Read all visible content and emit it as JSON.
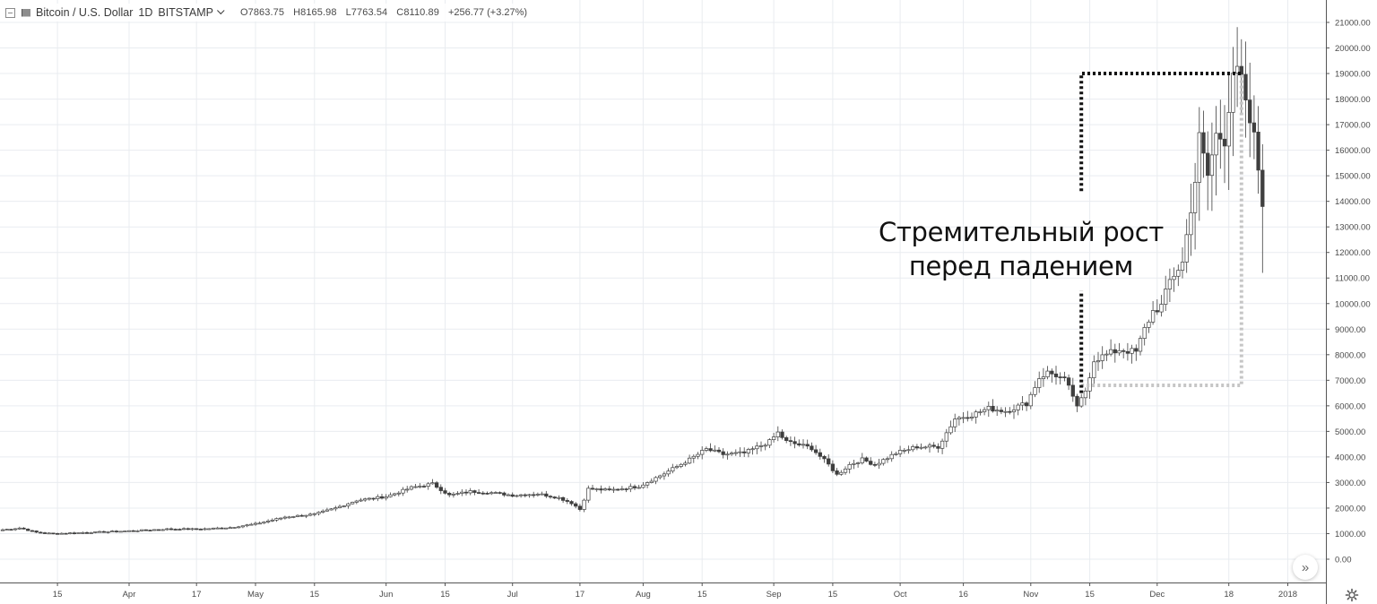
{
  "header": {
    "symbol": "Bitcoin / U.S. Dollar",
    "interval": "1D",
    "exchange": "BITSTAMP",
    "open": "O7863.75",
    "high": "H8165.98",
    "low": "L7763.54",
    "close": "C8110.89",
    "change": "+256.77 (+3.27%)"
  },
  "annotation": {
    "line1": "Стремительный рост",
    "line2": "перед падением"
  },
  "colors": {
    "candle_up": "#ffffff",
    "candle_down": "#3f3f3f",
    "candle_border": "#3f3f3f",
    "grid": "#e9ecf0",
    "black_marker": "#111111",
    "gray_marker": "#c6c6c6"
  },
  "icons": {
    "scroll": "double-chevron-right-icon",
    "settings": "gear-icon"
  },
  "chart_data": {
    "type": "candlestick",
    "ylim": [
      -200,
      21000
    ],
    "y_ticks": [
      "21000.00",
      "20000.00",
      "19000.00",
      "18000.00",
      "17000.00",
      "16000.00",
      "15000.00",
      "14000.00",
      "13000.00",
      "12000.00",
      "11000.00",
      "10000.00",
      "9000.00",
      "8000.00",
      "7000.00",
      "6000.00",
      "5000.00",
      "4000.00",
      "3000.00",
      "2000.00",
      "1000.00",
      "0.00"
    ],
    "x_ticks": [
      {
        "label": "15",
        "day": 14
      },
      {
        "label": "Apr",
        "day": 31
      },
      {
        "label": "17",
        "day": 47
      },
      {
        "label": "May",
        "day": 61
      },
      {
        "label": "15",
        "day": 75
      },
      {
        "label": "Jun",
        "day": 92
      },
      {
        "label": "15",
        "day": 106
      },
      {
        "label": "Jul",
        "day": 122
      },
      {
        "label": "17",
        "day": 138
      },
      {
        "label": "Aug",
        "day": 153
      },
      {
        "label": "15",
        "day": 167
      },
      {
        "label": "Sep",
        "day": 184
      },
      {
        "label": "15",
        "day": 198
      },
      {
        "label": "Oct",
        "day": 214
      },
      {
        "label": "16",
        "day": 229
      },
      {
        "label": "Nov",
        "day": 245
      },
      {
        "label": "15",
        "day": 259
      },
      {
        "label": "Dec",
        "day": 275
      },
      {
        "label": "18",
        "day": 292
      },
      {
        "label": "2018",
        "day": 306
      }
    ],
    "x_days_first": 1,
    "x_days_last": 319,
    "close_keypoints": [
      [
        1,
        1150
      ],
      [
        5,
        1220
      ],
      [
        9,
        1050
      ],
      [
        13,
        1000
      ],
      [
        20,
        1040
      ],
      [
        30,
        1100
      ],
      [
        40,
        1180
      ],
      [
        48,
        1180
      ],
      [
        55,
        1240
      ],
      [
        61,
        1380
      ],
      [
        68,
        1650
      ],
      [
        75,
        1760
      ],
      [
        80,
        2000
      ],
      [
        85,
        2300
      ],
      [
        92,
        2450
      ],
      [
        98,
        2800
      ],
      [
        103,
        2950
      ],
      [
        107,
        2500
      ],
      [
        112,
        2650
      ],
      [
        117,
        2600
      ],
      [
        122,
        2500
      ],
      [
        128,
        2560
      ],
      [
        133,
        2400
      ],
      [
        136,
        2200
      ],
      [
        138,
        1950
      ],
      [
        140,
        2750
      ],
      [
        145,
        2700
      ],
      [
        152,
        2850
      ],
      [
        158,
        3350
      ],
      [
        164,
        3900
      ],
      [
        168,
        4300
      ],
      [
        172,
        4100
      ],
      [
        177,
        4150
      ],
      [
        183,
        4600
      ],
      [
        185,
        4950
      ],
      [
        187,
        4600
      ],
      [
        193,
        4350
      ],
      [
        197,
        3700
      ],
      [
        199,
        3300
      ],
      [
        202,
        3700
      ],
      [
        205,
        3900
      ],
      [
        208,
        3700
      ],
      [
        213,
        4150
      ],
      [
        218,
        4400
      ],
      [
        223,
        4400
      ],
      [
        227,
        5500
      ],
      [
        231,
        5650
      ],
      [
        235,
        5900
      ],
      [
        239,
        5800
      ],
      [
        244,
        6100
      ],
      [
        247,
        7100
      ],
      [
        249,
        7300
      ],
      [
        251,
        7200
      ],
      [
        253,
        7000
      ],
      [
        255,
        6400
      ],
      [
        256,
        5900
      ],
      [
        258,
        6600
      ],
      [
        260,
        7800
      ],
      [
        263,
        8000
      ],
      [
        266,
        8200
      ],
      [
        270,
        8100
      ],
      [
        272,
        9000
      ],
      [
        274,
        9700
      ],
      [
        276,
        9900
      ],
      [
        278,
        10900
      ],
      [
        281,
        11600
      ],
      [
        284,
        14800
      ],
      [
        285,
        16500
      ],
      [
        287,
        15000
      ],
      [
        289,
        16600
      ],
      [
        291,
        16400
      ],
      [
        292,
        17700
      ],
      [
        293,
        19100
      ],
      [
        294,
        19000
      ],
      [
        295,
        18800
      ],
      [
        296,
        17700
      ],
      [
        298,
        16500
      ],
      [
        300,
        14000
      ]
    ],
    "annotations": {
      "black_dotted_path": [
        [
          257,
          6500
        ],
        [
          257,
          19000
        ],
        [
          295,
          19000
        ]
      ],
      "gray_dotted_path": [
        [
          257,
          6800
        ],
        [
          295,
          6800
        ],
        [
          295,
          19000
        ]
      ]
    }
  }
}
